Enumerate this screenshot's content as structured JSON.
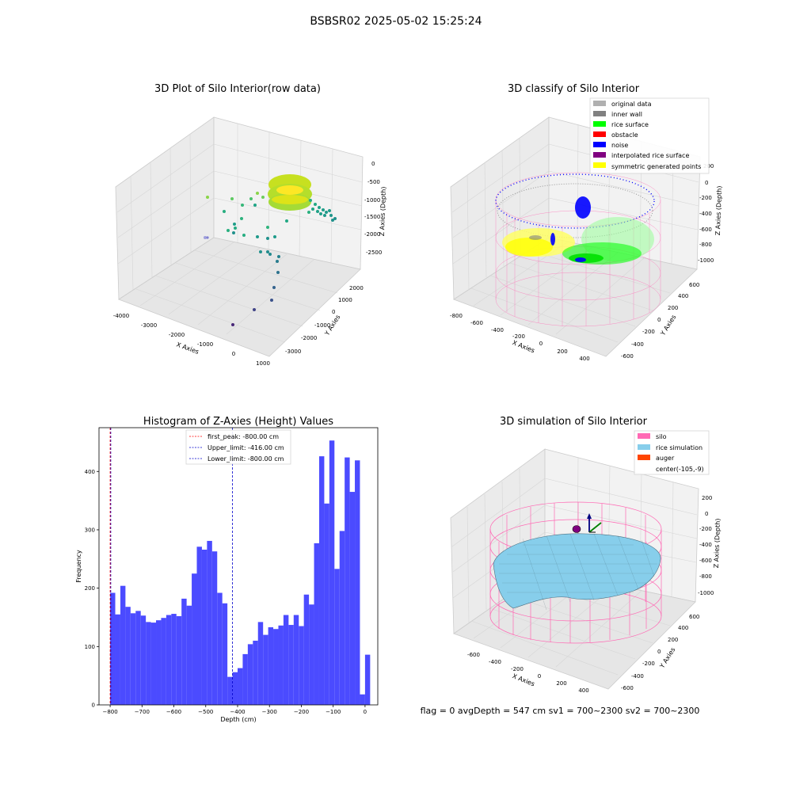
{
  "suptitle": "BSBSR02 2025-05-02 15:25:24",
  "footer": "flag = 0     avgDepth = 547 cm  sv1 = 700~2300  sv2 = 700~2300",
  "colors": {
    "hist_bar": "#4b4bff",
    "first_peak_line": "#ff0000",
    "upper_line": "#0000cc",
    "lower_line": "#0000cc",
    "silo_wire": "#ff69b4",
    "rice": "#87ceeb",
    "pane": "#f2f2f2"
  },
  "chart_data": [
    {
      "type": "scatter3d",
      "title": "3D Plot of Silo Interior(row data)",
      "xlabel": "X Axies",
      "ylabel": "Y Axies",
      "zlabel": "Z Axies (Depth)",
      "x_ticks": [
        "-4000",
        "-3000",
        "-2000",
        "-1000",
        "0",
        "1000"
      ],
      "y_ticks": [
        "-3000",
        "-2000",
        "-1000",
        "0",
        "1000",
        "2000"
      ],
      "z_ticks": [
        "0",
        "-500",
        "-1000",
        "-1500",
        "-2000",
        "-2500"
      ],
      "colormap": "viridis",
      "grid": true
    },
    {
      "type": "scatter3d",
      "title": "3D classify of Silo Interior",
      "xlabel": "X Axies",
      "ylabel": "Y Axies",
      "zlabel": "Z Axies (Depth)",
      "x_ticks": [
        "-800",
        "-600",
        "-400",
        "-200",
        "0",
        "200",
        "400"
      ],
      "y_ticks": [
        "-600",
        "-400",
        "-200",
        "0",
        "200",
        "400",
        "600"
      ],
      "z_ticks": [
        "200",
        "0",
        "-200",
        "-400",
        "-600",
        "-800",
        "-1000"
      ],
      "legend_position": "top-right",
      "legend": [
        {
          "label": "original data",
          "color": "#b0b0b0"
        },
        {
          "label": "inner wall",
          "color": "#808080"
        },
        {
          "label": "rice surface",
          "color": "#00ff00"
        },
        {
          "label": "obstacle",
          "color": "#ff0000"
        },
        {
          "label": "noise",
          "color": "#0000ff"
        },
        {
          "label": "interpolated rice surface",
          "color": "#800080"
        },
        {
          "label": "symmetric generated points",
          "color": "#ffff00"
        }
      ],
      "grid": true
    },
    {
      "type": "bar",
      "title": "Histogram of Z-Axies (Height) Values",
      "xlabel": "Depth (cm)",
      "ylabel": "Frequency",
      "xlim": [
        -835,
        40
      ],
      "ylim": [
        0,
        475
      ],
      "x_ticks": [
        -800,
        -700,
        -600,
        -500,
        -400,
        -300,
        -200,
        -100,
        0
      ],
      "y_ticks": [
        0,
        100,
        200,
        300,
        400
      ],
      "bin_start": -800,
      "bin_width": 16,
      "values": [
        192,
        155,
        204,
        168,
        157,
        161,
        153,
        142,
        141,
        145,
        149,
        154,
        156,
        152,
        182,
        170,
        225,
        271,
        266,
        281,
        263,
        192,
        174,
        48,
        56,
        63,
        87,
        104,
        110,
        142,
        120,
        133,
        130,
        136,
        154,
        137,
        154,
        135,
        189,
        172,
        277,
        426,
        345,
        453,
        233,
        298,
        424,
        365,
        419,
        18,
        86
      ],
      "lines": [
        {
          "label": "first_peak: -800.00 cm",
          "value": -800,
          "style": "dashed",
          "color": "#ff0000"
        },
        {
          "label": "Upper_limit: -416.00 cm",
          "value": -416,
          "style": "dashed",
          "color": "#0000cc"
        },
        {
          "label": "Lower_limit: -800.00 cm",
          "value": -800,
          "style": "dashed",
          "color": "#0000cc"
        }
      ],
      "legend_position": "top-center"
    },
    {
      "type": "surface3d",
      "title": "3D simulation of Silo Interior",
      "xlabel": "X Axies",
      "ylabel": "Y Axies",
      "zlabel": "Z Axies (Depth)",
      "x_ticks": [
        "-600",
        "-400",
        "-200",
        "0",
        "200",
        "400"
      ],
      "y_ticks": [
        "-600",
        "-400",
        "-200",
        "0",
        "200",
        "400",
        "600"
      ],
      "z_ticks": [
        "200",
        "0",
        "-200",
        "-400",
        "-600",
        "-800",
        "-1000"
      ],
      "legend_position": "top-right",
      "legend": [
        {
          "label": "silo",
          "color": "#ff69b4"
        },
        {
          "label": "rice simulation",
          "color": "#87ceeb"
        },
        {
          "label": "auger",
          "color": "#ff4500"
        },
        {
          "label": "center(-105,-9)",
          "color": ""
        }
      ],
      "grid": true
    }
  ]
}
